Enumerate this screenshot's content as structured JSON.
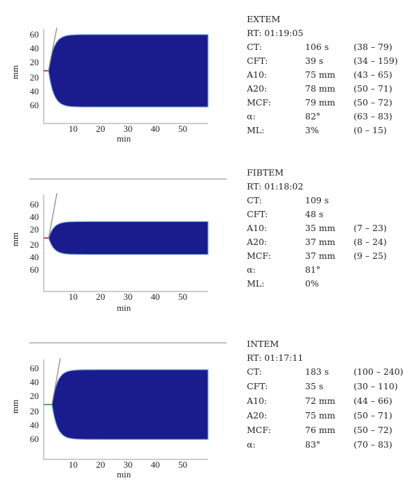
{
  "colors": {
    "fill": "#1a1b8c",
    "fill_edge": "#6f9fd6",
    "axis": "#999999",
    "alpha_line": "#8a8a8a",
    "baseline_red": "#b84b5f",
    "baseline_green": "#4caf50"
  },
  "chart_data": [
    {
      "type": "area",
      "xlabel": "min",
      "ylabel": "mm",
      "xticks": [
        10,
        20,
        30,
        40,
        50
      ],
      "yticks_top": [
        "60",
        "40",
        "20"
      ],
      "yticks_bottom": [
        "20",
        "40",
        "60"
      ],
      "xlim": [
        0,
        60
      ],
      "ylim": [
        -70,
        70
      ],
      "curve": {
        "ct_min": 1.77,
        "amplitude_mm": 79,
        "end_min": 60
      },
      "info": {
        "title": "EXTEM",
        "rt": "RT: 01:19:05",
        "rows": [
          {
            "label": "CT:",
            "value": "106 s",
            "ref": "(38 – 79)"
          },
          {
            "label": "CFT:",
            "value": "39 s",
            "ref": "(34 – 159)"
          },
          {
            "label": "A10:",
            "value": "75 mm",
            "ref": "(43 – 65)"
          },
          {
            "label": "A20:",
            "value": "78 mm",
            "ref": "(50 – 71)"
          },
          {
            "label": "MCF:",
            "value": "79 mm",
            "ref": "(50 – 72)"
          },
          {
            "label": "α:",
            "value": "82°",
            "ref": "(63 – 83)"
          },
          {
            "label": "ML:",
            "value": "3%",
            "ref": "(0 – 15)"
          }
        ]
      }
    },
    {
      "type": "area",
      "xlabel": "min",
      "ylabel": "mm",
      "xticks": [
        10,
        20,
        30,
        40,
        50
      ],
      "yticks_top": [
        "60",
        "40",
        "20"
      ],
      "yticks_bottom": [
        "20",
        "40",
        "60"
      ],
      "xlim": [
        0,
        60
      ],
      "ylim": [
        -70,
        70
      ],
      "curve": {
        "ct_min": 1.82,
        "amplitude_mm": 37,
        "end_min": 60
      },
      "info": {
        "title": "FIBTEM",
        "rt": "RT: 01:18:02",
        "rows": [
          {
            "label": "CT:",
            "value": "109 s",
            "ref": ""
          },
          {
            "label": "CFT:",
            "value": "48 s",
            "ref": ""
          },
          {
            "label": "A10:",
            "value": "35 mm",
            "ref": "(7 – 23)"
          },
          {
            "label": "A20:",
            "value": "37 mm",
            "ref": "(8 – 24)"
          },
          {
            "label": "MCF:",
            "value": "37 mm",
            "ref": "(9 – 25)"
          },
          {
            "label": "α:",
            "value": "81°",
            "ref": ""
          },
          {
            "label": "ML:",
            "value": "0%",
            "ref": ""
          }
        ]
      }
    },
    {
      "type": "area",
      "xlabel": "min",
      "ylabel": "mm",
      "xticks": [
        10,
        20,
        30,
        40,
        50
      ],
      "yticks_top": [
        "60",
        "40",
        "20"
      ],
      "yticks_bottom": [
        "20",
        "40",
        "60"
      ],
      "xlim": [
        0,
        60
      ],
      "ylim": [
        -70,
        70
      ],
      "curve": {
        "ct_min": 3.05,
        "amplitude_mm": 76,
        "end_min": 60
      },
      "info": {
        "title": "INTEM",
        "rt": "RT: 01:17:11",
        "rows": [
          {
            "label": "CT:",
            "value": "183 s",
            "ref": "(100 – 240)"
          },
          {
            "label": "CFT:",
            "value": "35 s",
            "ref": "(30 – 110)"
          },
          {
            "label": "A10:",
            "value": "72 mm",
            "ref": "(44 – 66)"
          },
          {
            "label": "A20:",
            "value": "75 mm",
            "ref": "(50 – 71)"
          },
          {
            "label": "MCF:",
            "value": "76 mm",
            "ref": "(50 – 72)"
          },
          {
            "label": "α:",
            "value": "83°",
            "ref": "(70 – 83)"
          }
        ]
      }
    }
  ]
}
